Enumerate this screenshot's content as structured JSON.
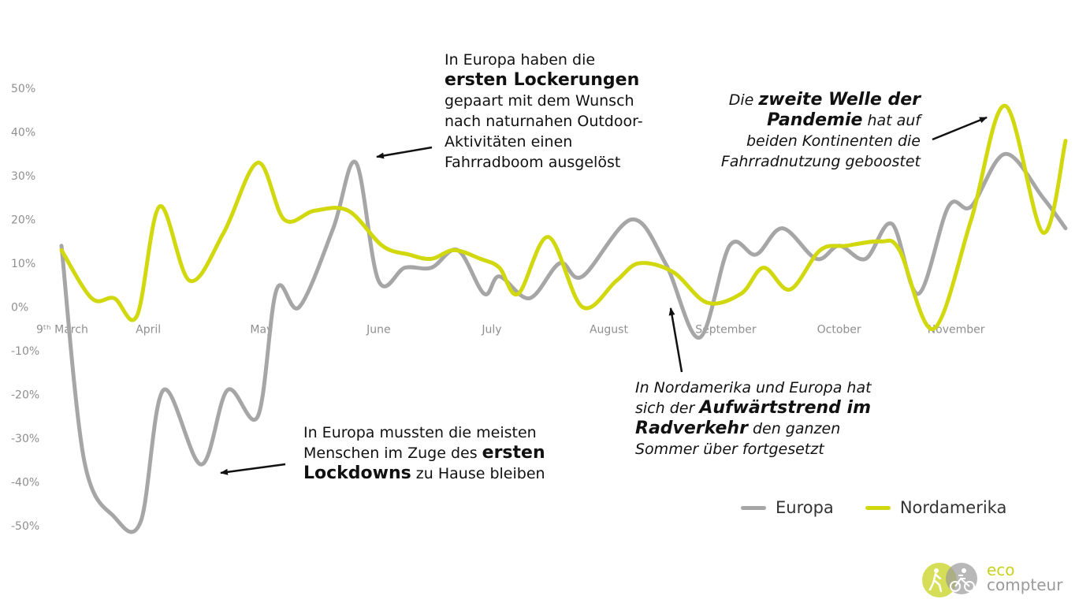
{
  "chart_data": {
    "type": "line",
    "title": "",
    "xlabel": "",
    "ylabel": "",
    "ylim": [
      -50,
      50
    ],
    "yticks": [
      "50%",
      "40%",
      "30%",
      "20%",
      "10%",
      "0%",
      "-10%",
      "-20%",
      "-30%",
      "-40%",
      "-50%"
    ],
    "ytick_values": [
      50,
      40,
      30,
      20,
      10,
      0,
      -10,
      -20,
      -30,
      -40,
      -50
    ],
    "xtick_labels": [
      "9ᵗʰ March",
      "April",
      "May",
      "June",
      "July",
      "August",
      "September",
      "October",
      "November"
    ],
    "x_start": "2020-03-09",
    "x_end": "2020-11-30",
    "xtick_dates": [
      "2020-03-09",
      "2020-04-01",
      "2020-05-01",
      "2020-06-01",
      "2020-07-01",
      "2020-08-01",
      "2020-09-01",
      "2020-10-01",
      "2020-11-01"
    ],
    "series": [
      {
        "name": "Europa",
        "color": "#a6a6a6",
        "points": [
          [
            "2020-03-09",
            14
          ],
          [
            "2020-03-15",
            -35
          ],
          [
            "2020-03-23",
            -48
          ],
          [
            "2020-03-30",
            -49
          ],
          [
            "2020-04-05",
            -19
          ],
          [
            "2020-04-15",
            -36
          ],
          [
            "2020-04-22",
            -19
          ],
          [
            "2020-04-30",
            -25
          ],
          [
            "2020-05-05",
            4
          ],
          [
            "2020-05-11",
            0
          ],
          [
            "2020-05-20",
            18
          ],
          [
            "2020-05-26",
            33
          ],
          [
            "2020-06-01",
            6
          ],
          [
            "2020-06-08",
            9
          ],
          [
            "2020-06-15",
            9
          ],
          [
            "2020-06-22",
            13
          ],
          [
            "2020-06-29",
            3
          ],
          [
            "2020-07-03",
            7
          ],
          [
            "2020-07-11",
            2
          ],
          [
            "2020-07-19",
            10
          ],
          [
            "2020-07-25",
            7
          ],
          [
            "2020-08-07",
            20
          ],
          [
            "2020-08-16",
            10
          ],
          [
            "2020-08-25",
            -7
          ],
          [
            "2020-09-02",
            14
          ],
          [
            "2020-09-09",
            12
          ],
          [
            "2020-09-16",
            18
          ],
          [
            "2020-09-25",
            11
          ],
          [
            "2020-10-01",
            14
          ],
          [
            "2020-10-08",
            11
          ],
          [
            "2020-10-15",
            19
          ],
          [
            "2020-10-22",
            3
          ],
          [
            "2020-10-30",
            23
          ],
          [
            "2020-11-05",
            23
          ],
          [
            "2020-11-14",
            35
          ],
          [
            "2020-11-24",
            25
          ],
          [
            "2020-11-30",
            18
          ]
        ]
      },
      {
        "name": "Nordamerika",
        "color": "#d2d80e",
        "points": [
          [
            "2020-03-09",
            13
          ],
          [
            "2020-03-17",
            2
          ],
          [
            "2020-03-23",
            2
          ],
          [
            "2020-03-29",
            -2
          ],
          [
            "2020-04-04",
            23
          ],
          [
            "2020-04-12",
            6
          ],
          [
            "2020-04-21",
            17
          ],
          [
            "2020-04-30",
            33
          ],
          [
            "2020-05-07",
            20
          ],
          [
            "2020-05-15",
            22
          ],
          [
            "2020-05-24",
            22
          ],
          [
            "2020-06-02",
            14
          ],
          [
            "2020-06-09",
            12
          ],
          [
            "2020-06-15",
            11
          ],
          [
            "2020-06-21",
            13
          ],
          [
            "2020-06-28",
            11
          ],
          [
            "2020-07-03",
            9
          ],
          [
            "2020-07-08",
            3
          ],
          [
            "2020-07-16",
            16
          ],
          [
            "2020-07-25",
            0
          ],
          [
            "2020-08-03",
            6
          ],
          [
            "2020-08-09",
            10
          ],
          [
            "2020-08-18",
            8
          ],
          [
            "2020-08-27",
            1
          ],
          [
            "2020-09-05",
            3
          ],
          [
            "2020-09-11",
            9
          ],
          [
            "2020-09-18",
            4
          ],
          [
            "2020-09-26",
            13
          ],
          [
            "2020-10-03",
            14
          ],
          [
            "2020-10-12",
            15
          ],
          [
            "2020-10-17",
            13
          ],
          [
            "2020-10-26",
            -5
          ],
          [
            "2020-11-05",
            20
          ],
          [
            "2020-11-14",
            46
          ],
          [
            "2020-11-24",
            17
          ],
          [
            "2020-11-30",
            38
          ]
        ]
      }
    ],
    "legend_position": "bottom-right",
    "grid": false
  },
  "annotations": {
    "a1": {
      "p1": "In Europa haben die ",
      "b1": "ersten Lockerungen",
      "p2": " gepaart mit dem Wunsch nach naturnahen Outdoor-Aktivitäten einen Fahrradboom ausgelöst"
    },
    "a2": {
      "p1": "Die ",
      "b1": "zweite Welle der Pandemie",
      "p2": " hat auf beiden Kontinenten die Fahrradnutzung geboostet"
    },
    "a3": {
      "p1": "In Nordamerika und Europa hat sich der ",
      "b1": "Aufwärtstrend im Radverkehr",
      "p2": " den ganzen Sommer über fortgesetzt"
    },
    "a4": {
      "p1": "In Europa mussten die meisten Menschen im Zuge des ",
      "b1": "ersten Lockdowns",
      "p2": " zu Hause bleiben"
    }
  },
  "legend": {
    "europa": "Europa",
    "nordamerika": "Nordamerika"
  },
  "logo": {
    "line1": "eco",
    "line2": "compteur"
  },
  "colors": {
    "europa": "#a6a6a6",
    "nordamerika": "#d2d80e",
    "accent": "#c8d21e"
  }
}
